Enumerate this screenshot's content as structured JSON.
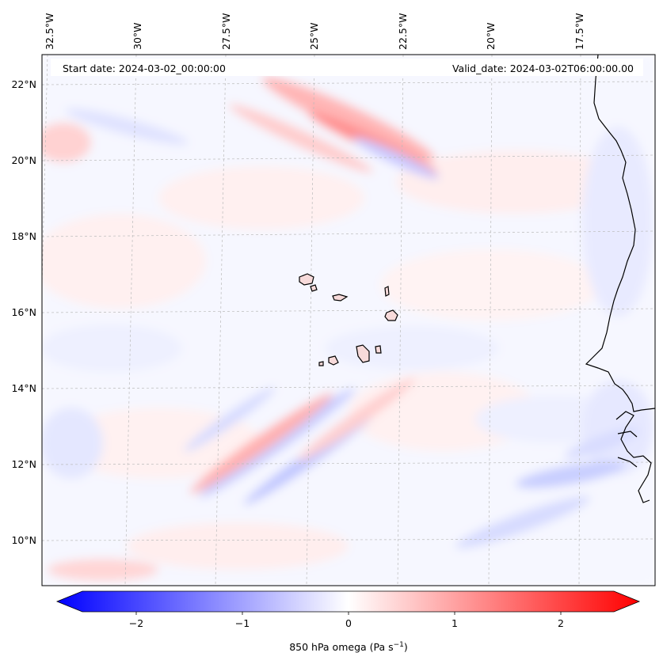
{
  "map": {
    "start_label": "Start date: 2024-03-02_00:00:00",
    "valid_label": "Valid_date: 2024-03-02T06:00:00.00",
    "lon_labels": [
      "32.5°W",
      "30°W",
      "27.5°W",
      "25°W",
      "22.5°W",
      "20°W",
      "17.5°W"
    ],
    "lat_labels": [
      "22°N",
      "20°N",
      "18°N",
      "16°N",
      "14°N",
      "12°N",
      "10°N"
    ],
    "field": "850 hPa omega",
    "gridlines": true
  },
  "colorbar": {
    "label": "850 hPa omega (Pa s",
    "label_sup": "−1",
    "label_close": ")",
    "ticks": [
      "−2",
      "−1",
      "0",
      "1",
      "2"
    ],
    "range": [
      -2.6,
      2.6
    ],
    "colormap": "bwr",
    "colors": {
      "negative": "#0000ff",
      "zero": "#ffffff",
      "positive": "#ff0000"
    },
    "extend": "both"
  }
}
